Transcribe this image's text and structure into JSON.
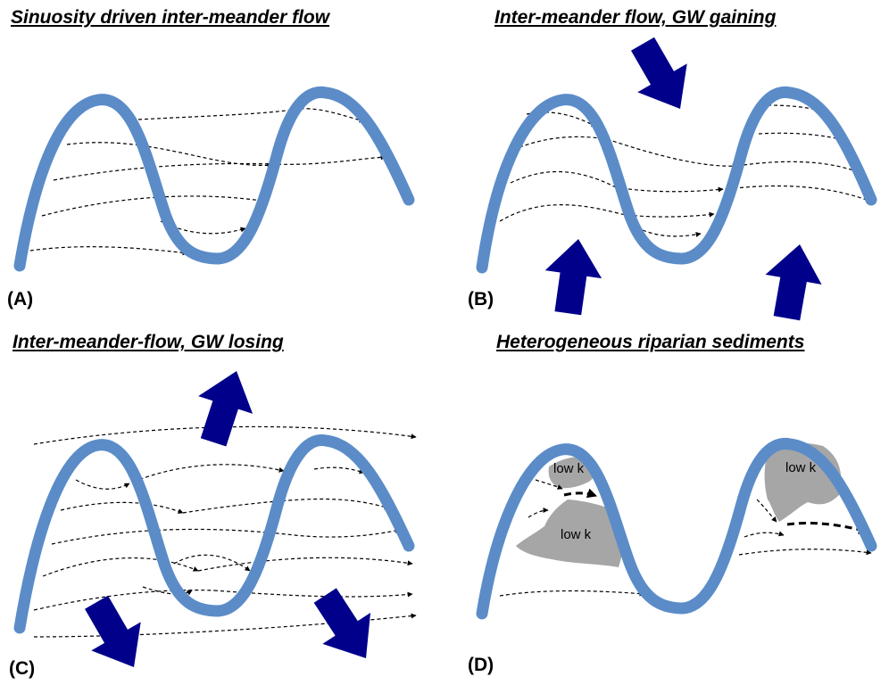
{
  "panels": [
    {
      "id": "A",
      "title": "Sinuosity driven inter-meander flow",
      "label": "(A)"
    },
    {
      "id": "B",
      "title": "Inter-meander flow, GW gaining",
      "label": "(B)"
    },
    {
      "id": "C",
      "title": "Inter-meander-flow, GW losing",
      "label": "(C)"
    },
    {
      "id": "D",
      "title": "Heterogeneous riparian sediments",
      "label": "(D)",
      "zones": [
        {
          "label": "low k"
        },
        {
          "label": "low k"
        },
        {
          "label": "low k"
        }
      ]
    }
  ],
  "colors": {
    "river": "#5b8cc8",
    "gw_arrow": "#00008b",
    "sediment": "#a6a6a6",
    "flowline": "#000000"
  }
}
